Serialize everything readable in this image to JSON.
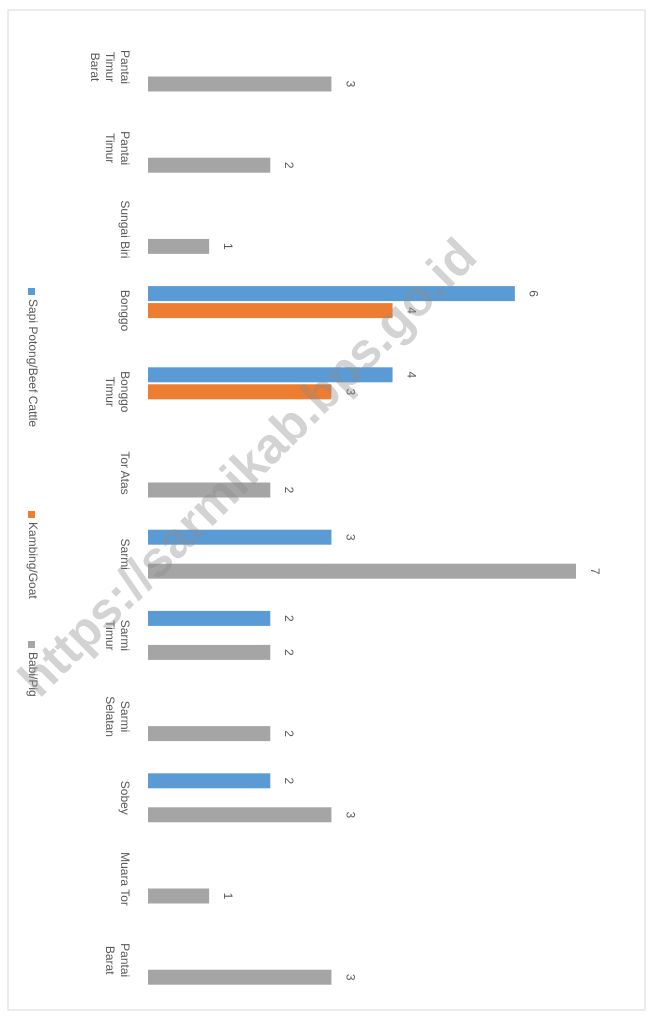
{
  "chart_data": {
    "type": "bar",
    "categories": [
      "Pantai\nTimur\nBarat",
      "Pantai\nTimur",
      "Sungai Biri",
      "Bonggo",
      "Bonggo\nTimur",
      "Tor Atas",
      "Sarmi",
      "Sarmi\nTimur",
      "Sarmi\nSelatan",
      "Sobey",
      "Muara Tor",
      "Pantai\nBarat"
    ],
    "series": [
      {
        "name": "Sapi Potong/Beef Cattle",
        "color": "#5b9bd5",
        "values": [
          null,
          null,
          null,
          6,
          4,
          null,
          3,
          2,
          null,
          2,
          null,
          null
        ]
      },
      {
        "name": "Kambing/Goat",
        "color": "#ed7d31",
        "values": [
          null,
          null,
          null,
          4,
          3,
          null,
          null,
          null,
          null,
          null,
          null,
          null
        ]
      },
      {
        "name": "Babi/Pig",
        "color": "#a5a5a5",
        "values": [
          3,
          2,
          1,
          null,
          null,
          2,
          7,
          2,
          2,
          3,
          1,
          3
        ]
      }
    ],
    "watermark": "https://sarmikab.bps.go.id"
  }
}
